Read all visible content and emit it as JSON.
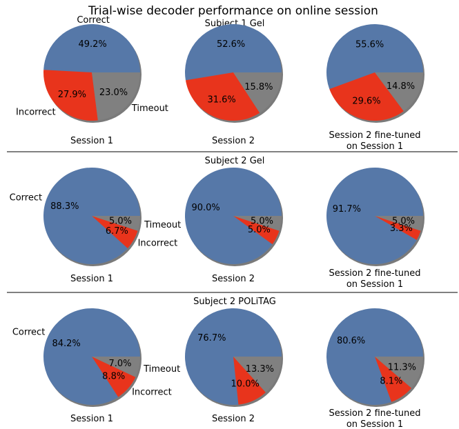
{
  "title": "Trial-wise decoder performance on online session",
  "colors": {
    "correct": "#5678a8",
    "incorrect": "#e8341c",
    "timeout": "#808080",
    "shadow": "#7a7a7a"
  },
  "chart_data": [
    {
      "type": "pie",
      "panel": "Subject 1 Gel",
      "labels": [
        "Correct",
        "Incorrect",
        "Timeout"
      ],
      "charts": [
        {
          "caption": "Session 1",
          "values": [
            49.2,
            27.9,
            23.0
          ],
          "value_labels": [
            "49.2%",
            "27.9%",
            "23.0%"
          ]
        },
        {
          "caption": "Session 2",
          "values": [
            52.6,
            31.6,
            15.8
          ],
          "value_labels": [
            "52.6%",
            "31.6%",
            "15.8%"
          ]
        },
        {
          "caption": "Session 2 fine-tuned\non Session 1",
          "values": [
            55.6,
            29.6,
            14.8
          ],
          "value_labels": [
            "55.6%",
            "29.6%",
            "14.8%"
          ]
        }
      ]
    },
    {
      "type": "pie",
      "panel": "Subject 2 Gel",
      "labels": [
        "Correct",
        "Incorrect",
        "Timeout"
      ],
      "charts": [
        {
          "caption": "Session 1",
          "values": [
            88.3,
            6.7,
            5.0
          ],
          "value_labels": [
            "88.3%",
            "6.7%",
            "5.0%"
          ]
        },
        {
          "caption": "Session 2",
          "values": [
            90.0,
            5.0,
            5.0
          ],
          "value_labels": [
            "90.0%",
            "5.0%",
            "5.0%"
          ]
        },
        {
          "caption": "Session 2 fine-tuned\non Session 1",
          "values": [
            91.7,
            3.3,
            5.0
          ],
          "value_labels": [
            "91.7%",
            "3.3%",
            "5.0%"
          ]
        }
      ]
    },
    {
      "type": "pie",
      "panel": "Subject 2 POLiTAG",
      "labels": [
        "Correct",
        "Incorrect",
        "Timeout"
      ],
      "charts": [
        {
          "caption": "Session 1",
          "values": [
            84.2,
            8.8,
            7.0
          ],
          "value_labels": [
            "84.2%",
            "8.8%",
            "7.0%"
          ]
        },
        {
          "caption": "Session 2",
          "values": [
            76.7,
            10.0,
            13.3
          ],
          "value_labels": [
            "76.7%",
            "10.0%",
            "13.3%"
          ]
        },
        {
          "caption": "Session 2 fine-tuned\non Session 1",
          "values": [
            80.6,
            8.1,
            11.3
          ],
          "value_labels": [
            "80.6%",
            "8.1%",
            "11.3%"
          ]
        }
      ]
    }
  ]
}
